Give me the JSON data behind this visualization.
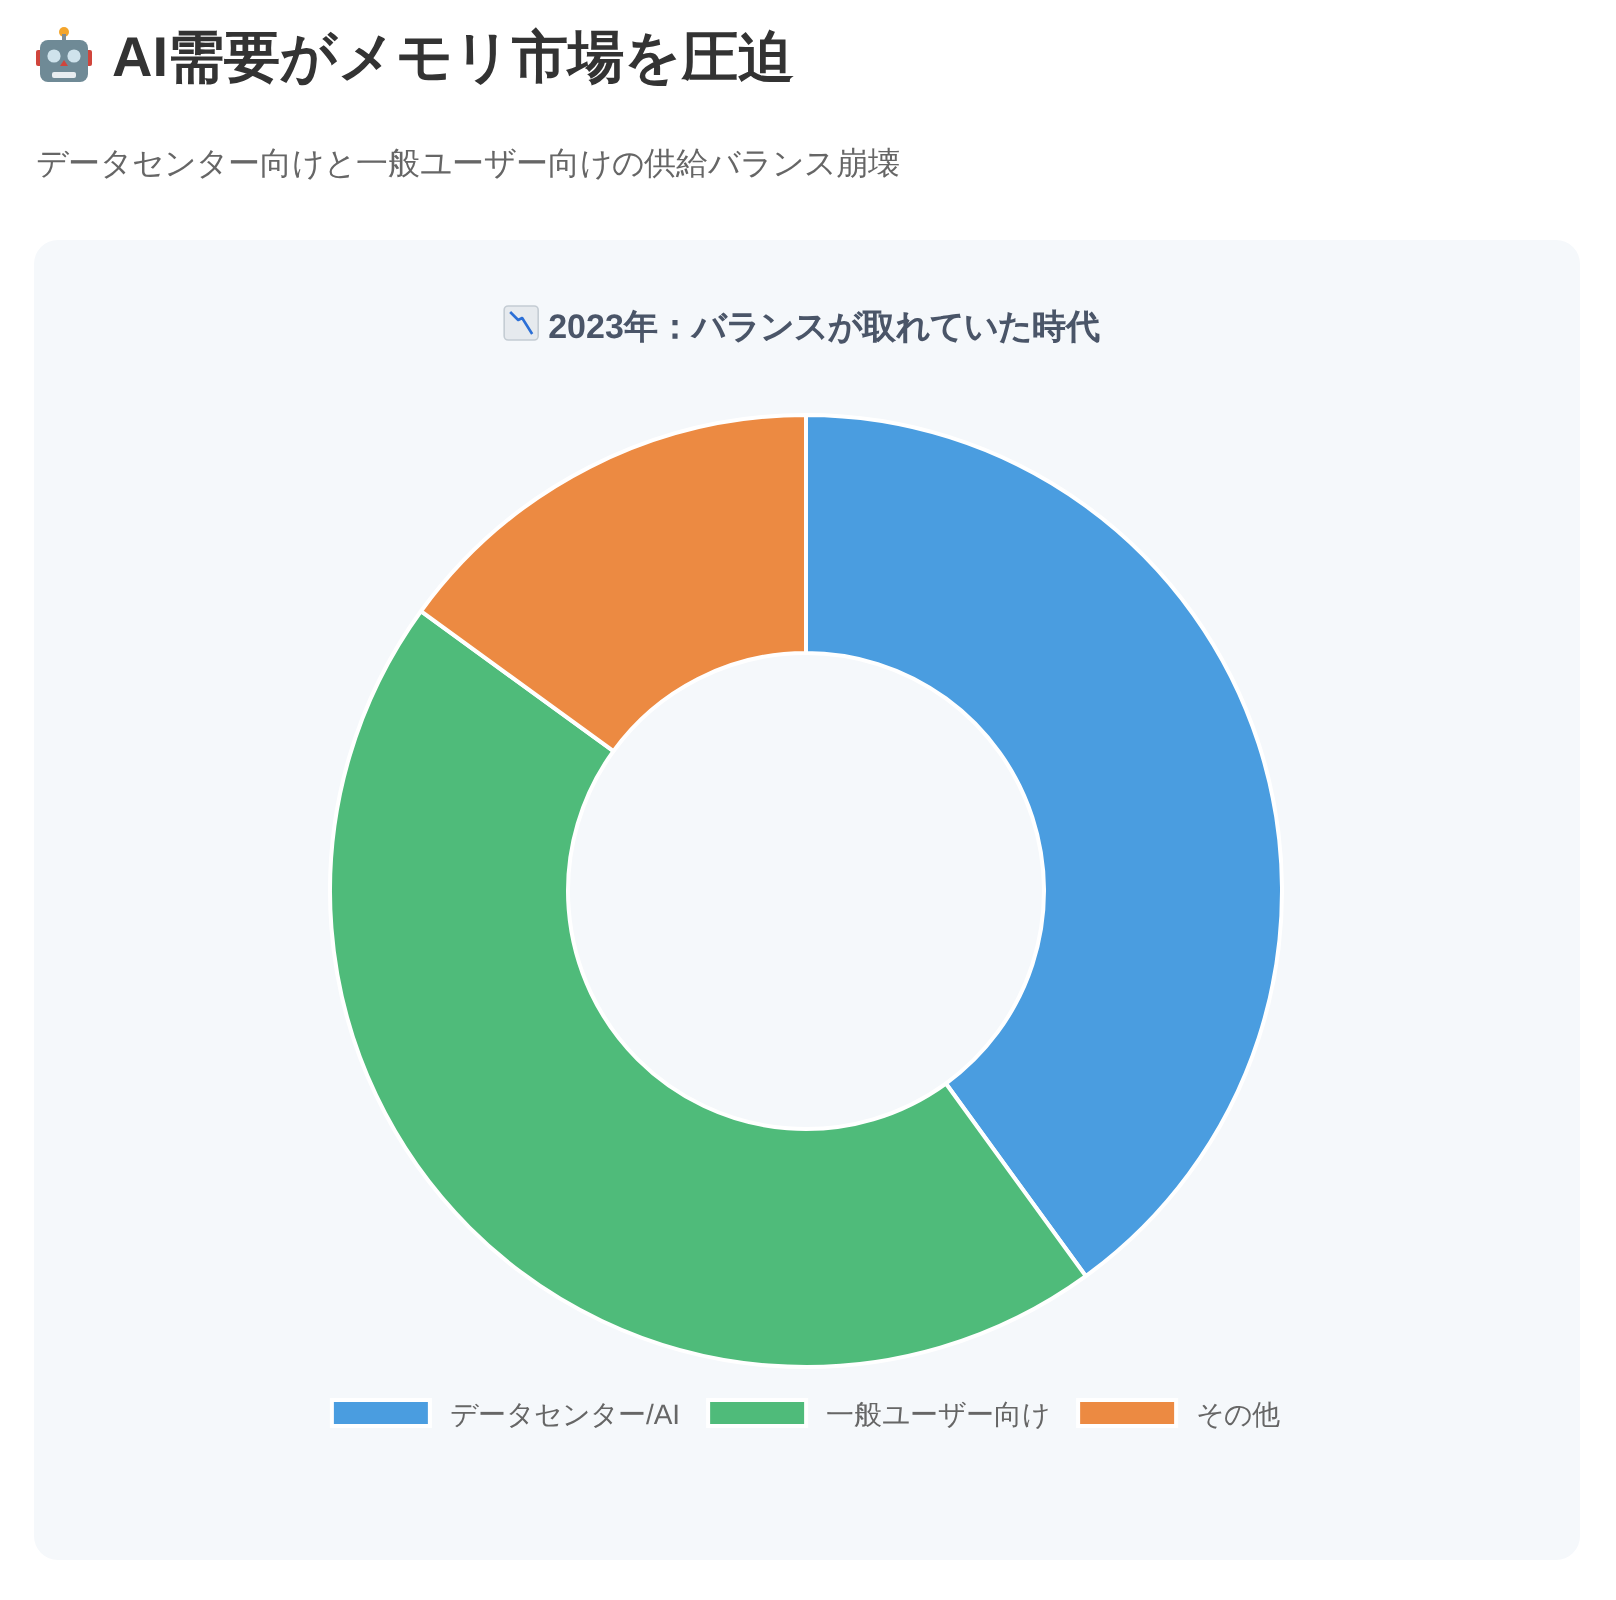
{
  "chart_data": {
    "type": "donut",
    "title": "AI需要がメモリ市場を圧迫",
    "subtitle": "データセンター向けと一般ユーザー向けの供給バランス崩壊",
    "annotations": [
      "2023年：バランスが取れていた時代"
    ],
    "categories": [
      "データセンター/AI",
      "一般ユーザー向け",
      "その他"
    ],
    "values": [
      40,
      45,
      15
    ],
    "colors": [
      "#4a9de0",
      "#4fbb7a",
      "#ec8a42"
    ],
    "legend": "bottom"
  }
}
